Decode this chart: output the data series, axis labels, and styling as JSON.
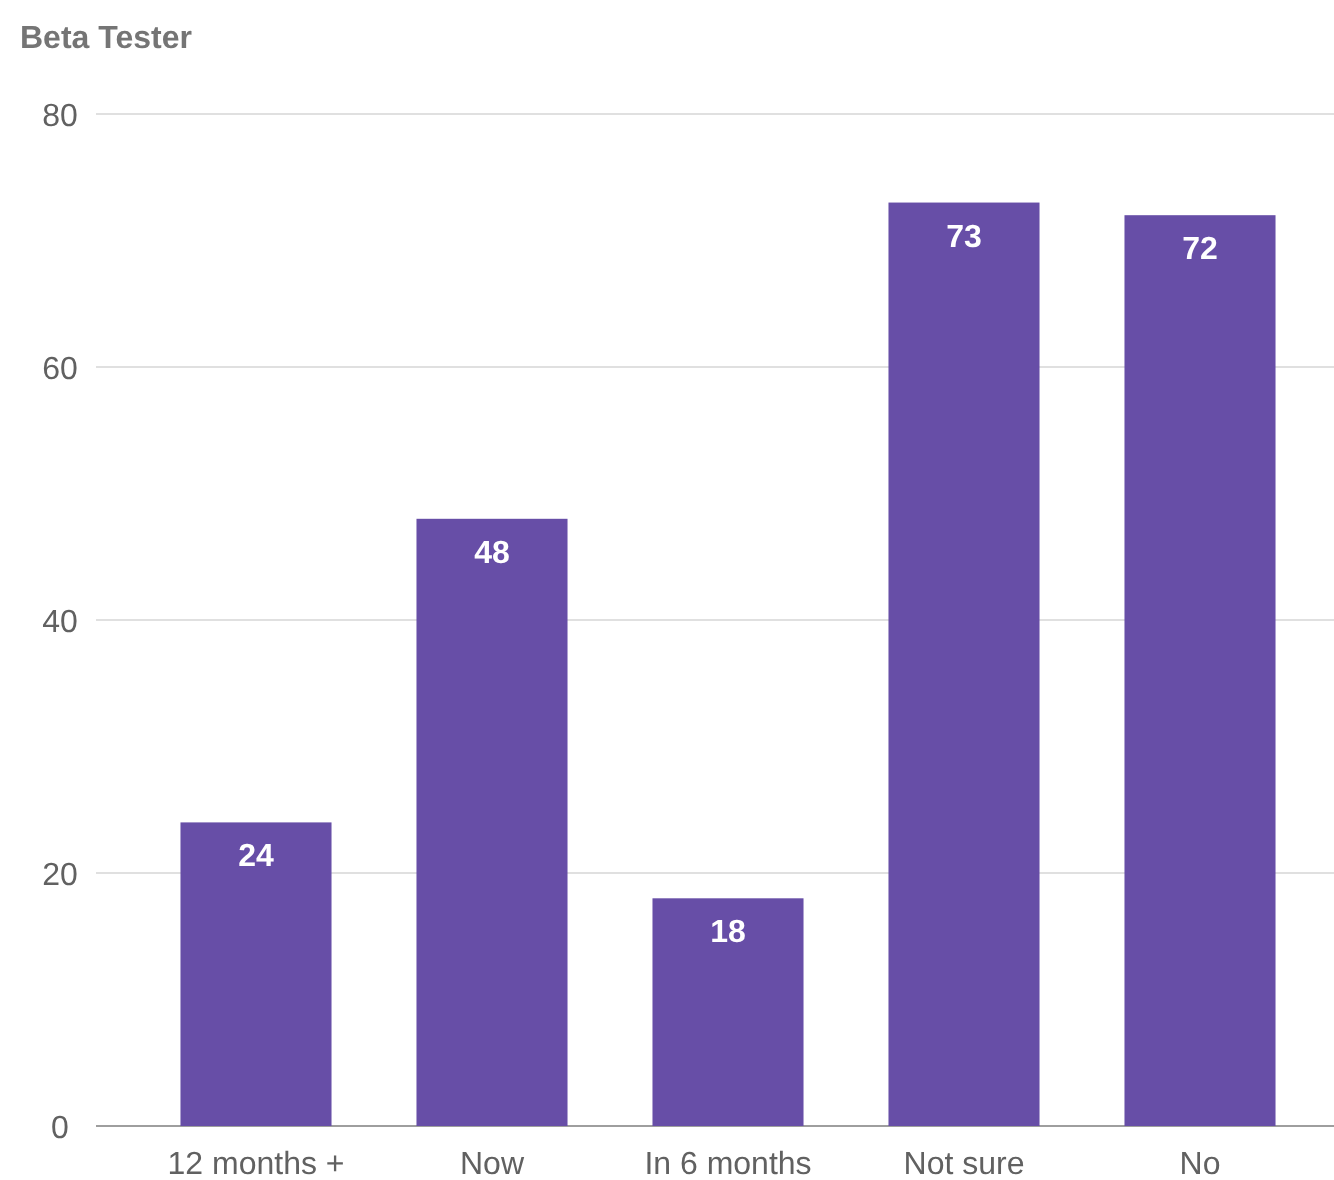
{
  "chart_data": {
    "type": "bar",
    "title": "Beta Tester",
    "categories": [
      "12 months +",
      "Now",
      "In 6 months",
      "Not sure",
      "No"
    ],
    "values": [
      24,
      48,
      18,
      73,
      72
    ],
    "color": "#674ea7",
    "ylim": [
      0,
      80
    ],
    "yticks": [
      0,
      20,
      40,
      60,
      80
    ],
    "grid": "y",
    "data_labels": true
  }
}
